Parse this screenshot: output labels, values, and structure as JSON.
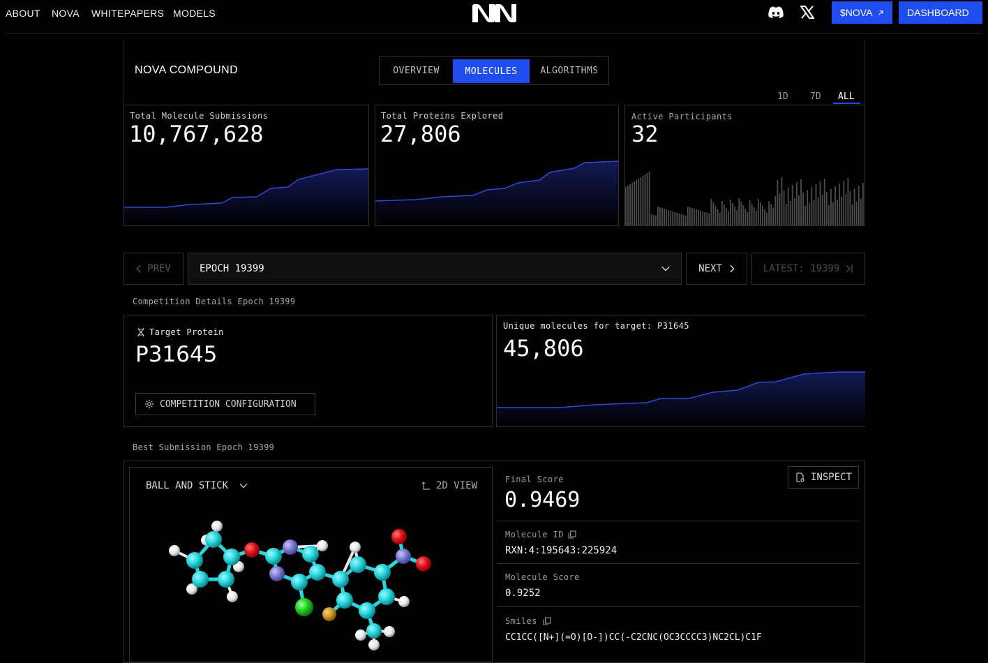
{
  "nav": {
    "links": [
      "ABOUT",
      "NOVA",
      "WHITEPAPERS",
      "MODELS"
    ],
    "nova_cta": "$NOVA",
    "dashboard_cta": "DASHBOARD"
  },
  "header": {
    "title": "NOVA COMPOUND",
    "tabs": [
      "OVERVIEW",
      "MOLECULES",
      "ALGORITHMS"
    ],
    "active_tab": "MOLECULES",
    "ranges": [
      "1D",
      "7D",
      "ALL"
    ],
    "active_range": "ALL"
  },
  "stats": {
    "submissions_label": "Total Molecule Submissions",
    "submissions_value": "10,767,628",
    "proteins_label": "Total Proteins Explored",
    "proteins_value": "27,806",
    "participants_label": "Active Participants",
    "participants_value": "32"
  },
  "epoch_nav": {
    "prev": "PREV",
    "selected": "EPOCH 19399",
    "next": "NEXT",
    "latest": "LATEST: 19399"
  },
  "competition": {
    "section_label": "Competition Details Epoch 19399",
    "target_label": "Target Protein",
    "target_value": "P31645",
    "config_button": "COMPETITION CONFIGURATION",
    "unique_label": "Unique molecules for target: P31645",
    "unique_value": "45,806"
  },
  "best": {
    "section_label": "Best Submission Epoch 19399",
    "view_mode": "BALL AND STICK",
    "view_2d": "2D VIEW",
    "inspect": "INSPECT",
    "final_score_label": "Final Score",
    "final_score_value": "0.9469",
    "molecule_id_label": "Molecule ID",
    "molecule_id_value": "RXN:4:195643:225924",
    "molecule_score_label": "Molecule Score",
    "molecule_score_value": "0.9252",
    "smiles_label": "Smiles",
    "smiles_value": "CC1CC([N+](=O)[O-])CC(-C2CNC(OC3CCCC3)NC2CL)C1F"
  },
  "colors": {
    "accent": "#1f4df0",
    "chart_line": "#3347d6",
    "carbon": "#27d7de",
    "nitrogen": "#7b79d4",
    "oxygen": "#e3101b",
    "hydrogen": "#f2f2f2",
    "chlorine": "#1fd11f",
    "fluorine": "#d69a24"
  },
  "icons": [
    "discord-icon",
    "x-icon",
    "arrow-up-right-icon",
    "chevron-left-icon",
    "chevron-down-icon",
    "chevron-right-icon",
    "skip-end-icon",
    "dna-icon",
    "gear-icon",
    "corner-arrow-icon",
    "document-search-icon",
    "copy-icon"
  ]
}
